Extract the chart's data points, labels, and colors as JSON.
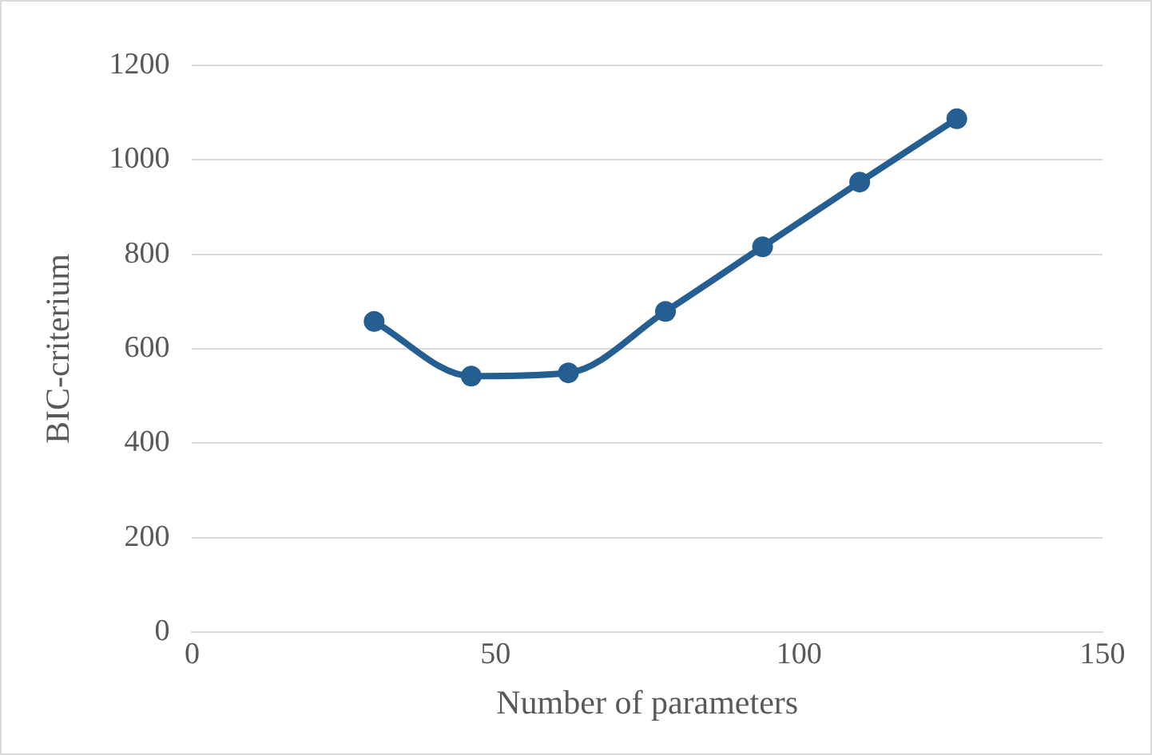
{
  "chart_data": {
    "type": "line",
    "xlabel": "Number of parameters",
    "ylabel": "BIC-criterium",
    "x": [
      30,
      46,
      62,
      78,
      94,
      110,
      126
    ],
    "series": [
      {
        "color": "#255e91",
        "values": [
          658,
          542,
          549,
          679,
          816,
          953,
          1087
        ]
      }
    ],
    "xlim": [
      0,
      150
    ],
    "xticks": [
      0,
      50,
      100,
      150
    ],
    "ylim": [
      0,
      1200
    ],
    "yticks": [
      0,
      200,
      400,
      600,
      800,
      1000,
      1200
    ],
    "grid": "y",
    "legend": false,
    "marker": "circle",
    "line_style": "solid"
  }
}
